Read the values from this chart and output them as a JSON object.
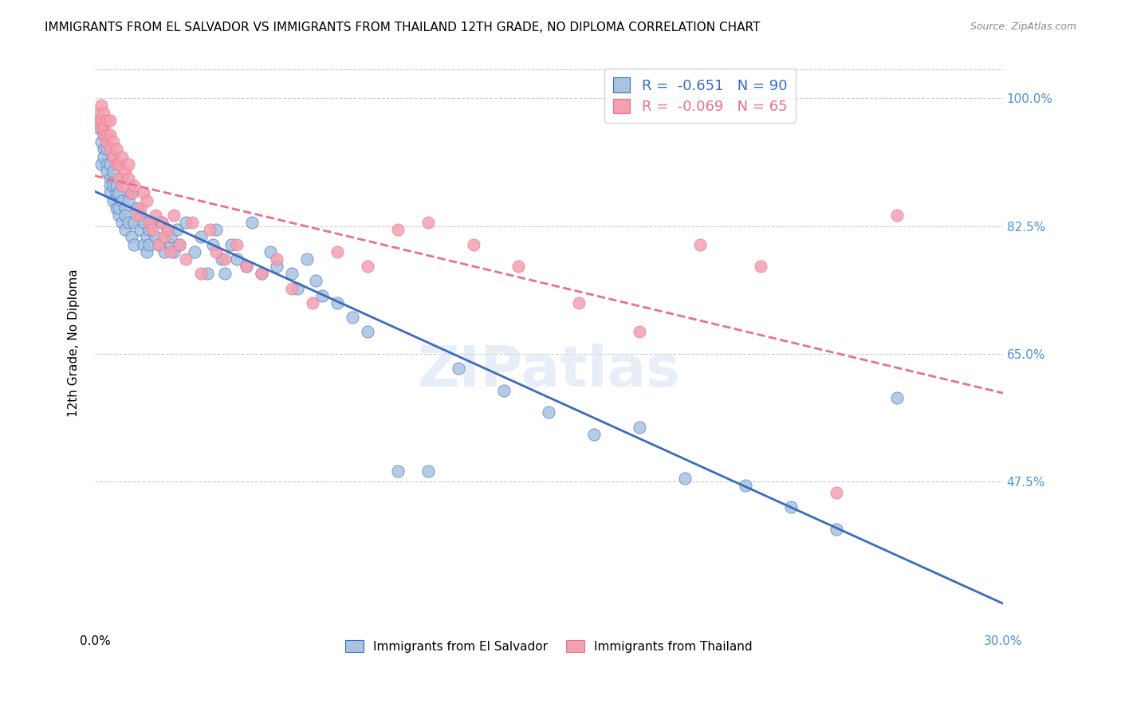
{
  "title": "IMMIGRANTS FROM EL SALVADOR VS IMMIGRANTS FROM THAILAND 12TH GRADE, NO DIPLOMA CORRELATION CHART",
  "source": "Source: ZipAtlas.com",
  "ylabel": "12th Grade, No Diploma",
  "ytick_labels": [
    "100.0%",
    "82.5%",
    "65.0%",
    "47.5%"
  ],
  "ytick_values": [
    1.0,
    0.825,
    0.65,
    0.475
  ],
  "xlim": [
    0.0,
    0.3
  ],
  "ylim": [
    0.28,
    1.05
  ],
  "legend_r_salvador": "-0.651",
  "legend_n_salvador": "90",
  "legend_r_thailand": "-0.069",
  "legend_n_thailand": "65",
  "legend_label_salvador": "Immigrants from El Salvador",
  "legend_label_thailand": "Immigrants from Thailand",
  "color_salvador": "#a8c4e0",
  "color_thailand": "#f4a0b0",
  "trendline_salvador_color": "#3a6bbf",
  "trendline_thailand_color": "#e87090",
  "watermark": "ZIPatlas",
  "salvador_x": [
    0.001,
    0.002,
    0.002,
    0.003,
    0.003,
    0.003,
    0.004,
    0.004,
    0.004,
    0.005,
    0.005,
    0.005,
    0.005,
    0.006,
    0.006,
    0.006,
    0.006,
    0.007,
    0.007,
    0.007,
    0.008,
    0.008,
    0.008,
    0.009,
    0.009,
    0.009,
    0.01,
    0.01,
    0.01,
    0.011,
    0.011,
    0.012,
    0.012,
    0.013,
    0.013,
    0.014,
    0.015,
    0.015,
    0.016,
    0.016,
    0.017,
    0.017,
    0.018,
    0.018,
    0.019,
    0.02,
    0.021,
    0.022,
    0.023,
    0.024,
    0.025,
    0.025,
    0.026,
    0.027,
    0.028,
    0.03,
    0.033,
    0.035,
    0.037,
    0.039,
    0.04,
    0.042,
    0.043,
    0.045,
    0.047,
    0.05,
    0.052,
    0.055,
    0.058,
    0.06,
    0.065,
    0.067,
    0.07,
    0.073,
    0.075,
    0.08,
    0.085,
    0.09,
    0.1,
    0.11,
    0.12,
    0.135,
    0.15,
    0.165,
    0.18,
    0.195,
    0.215,
    0.23,
    0.245,
    0.265
  ],
  "salvador_y": [
    0.96,
    0.94,
    0.91,
    0.93,
    0.95,
    0.92,
    0.91,
    0.93,
    0.9,
    0.89,
    0.91,
    0.88,
    0.87,
    0.88,
    0.9,
    0.86,
    0.92,
    0.87,
    0.85,
    0.88,
    0.84,
    0.87,
    0.85,
    0.86,
    0.83,
    0.89,
    0.82,
    0.85,
    0.84,
    0.86,
    0.83,
    0.81,
    0.87,
    0.83,
    0.8,
    0.85,
    0.82,
    0.84,
    0.8,
    0.83,
    0.81,
    0.79,
    0.82,
    0.8,
    0.83,
    0.81,
    0.8,
    0.83,
    0.79,
    0.82,
    0.8,
    0.81,
    0.79,
    0.82,
    0.8,
    0.83,
    0.79,
    0.81,
    0.76,
    0.8,
    0.82,
    0.78,
    0.76,
    0.8,
    0.78,
    0.77,
    0.83,
    0.76,
    0.79,
    0.77,
    0.76,
    0.74,
    0.78,
    0.75,
    0.73,
    0.72,
    0.7,
    0.68,
    0.49,
    0.49,
    0.63,
    0.6,
    0.57,
    0.54,
    0.55,
    0.48,
    0.47,
    0.44,
    0.41,
    0.59
  ],
  "thailand_x": [
    0.001,
    0.001,
    0.002,
    0.002,
    0.002,
    0.003,
    0.003,
    0.003,
    0.004,
    0.004,
    0.004,
    0.005,
    0.005,
    0.005,
    0.006,
    0.006,
    0.007,
    0.007,
    0.008,
    0.008,
    0.009,
    0.009,
    0.01,
    0.011,
    0.011,
    0.012,
    0.013,
    0.014,
    0.015,
    0.016,
    0.017,
    0.018,
    0.019,
    0.02,
    0.021,
    0.022,
    0.023,
    0.024,
    0.025,
    0.026,
    0.028,
    0.03,
    0.032,
    0.035,
    0.038,
    0.04,
    0.043,
    0.047,
    0.05,
    0.055,
    0.06,
    0.065,
    0.072,
    0.08,
    0.09,
    0.1,
    0.11,
    0.125,
    0.14,
    0.16,
    0.18,
    0.2,
    0.22,
    0.245,
    0.265
  ],
  "thailand_y": [
    0.97,
    0.98,
    0.96,
    0.97,
    0.99,
    0.95,
    0.96,
    0.98,
    0.94,
    0.95,
    0.97,
    0.93,
    0.95,
    0.97,
    0.92,
    0.94,
    0.91,
    0.93,
    0.89,
    0.91,
    0.88,
    0.92,
    0.9,
    0.91,
    0.89,
    0.87,
    0.88,
    0.84,
    0.85,
    0.87,
    0.86,
    0.83,
    0.82,
    0.84,
    0.8,
    0.83,
    0.81,
    0.82,
    0.79,
    0.84,
    0.8,
    0.78,
    0.83,
    0.76,
    0.82,
    0.79,
    0.78,
    0.8,
    0.77,
    0.76,
    0.78,
    0.74,
    0.72,
    0.79,
    0.77,
    0.82,
    0.83,
    0.8,
    0.77,
    0.72,
    0.68,
    0.8,
    0.77,
    0.46,
    0.84
  ]
}
